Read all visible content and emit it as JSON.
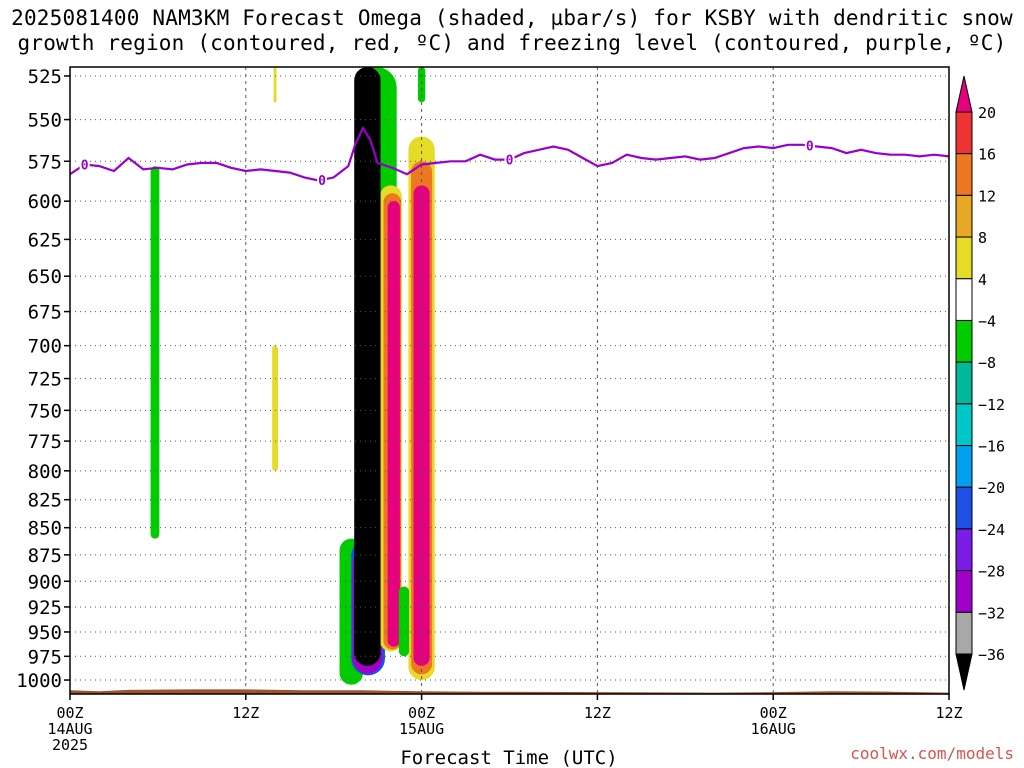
{
  "title_line1": "2025081400 NAM3KM Forecast Omega (shaded, µbar/s) for KSBY with dendritic snow",
  "title_line2": "growth region (contoured, red, ºC) and freezing level (contoured, purple, ºC)",
  "credit": "coolwx.com/models",
  "colors": {
    "freezing": "#9900cc",
    "terrain": "#a0522d",
    "black": "#000000",
    "magenta": "#e6007e",
    "green": "#00cc00",
    "yellow": "#e6dc28"
  },
  "chart_data": {
    "type": "heatmap",
    "xlabel": "Forecast Time (UTC)",
    "x_ticks": [
      {
        "h": 0,
        "l1": "00Z",
        "l2": "14AUG",
        "l3": "2025"
      },
      {
        "h": 12,
        "l1": "12Z",
        "l2": "",
        "l3": ""
      },
      {
        "h": 24,
        "l1": "00Z",
        "l2": "15AUG",
        "l3": ""
      },
      {
        "h": 36,
        "l1": "12Z",
        "l2": "",
        "l3": ""
      },
      {
        "h": 48,
        "l1": "00Z",
        "l2": "16AUG",
        "l3": ""
      },
      {
        "h": 60,
        "l1": "12Z",
        "l2": "",
        "l3": ""
      }
    ],
    "xlim": [
      0,
      60
    ],
    "y_ticks": [
      525,
      550,
      575,
      600,
      625,
      650,
      675,
      700,
      725,
      750,
      775,
      800,
      825,
      850,
      875,
      900,
      925,
      950,
      975,
      1000
    ],
    "ylim": [
      520,
      1015
    ],
    "y_scale": "log",
    "grid": true,
    "colorbar": {
      "labels": [
        "20",
        "16",
        "12",
        "8",
        "4",
        "−4",
        "−8",
        "−12",
        "−16",
        "−20",
        "−24",
        "−28",
        "−32",
        "−36"
      ],
      "colors": [
        "#e6007e",
        "#ee3333",
        "#ee7722",
        "#e6a825",
        "#e6dc28",
        "#ffffff",
        "#00cc00",
        "#00b89a",
        "#00c8c8",
        "#00a0ee",
        "#1e50e6",
        "#7a1ee6",
        "#a000c8",
        "#a8a8a8",
        "#000000"
      ]
    },
    "freezing_level": {
      "hours": [
        0,
        1,
        2,
        3,
        4,
        5,
        6,
        7,
        8,
        9,
        10,
        11,
        12,
        13,
        14,
        15,
        16,
        17,
        18,
        19,
        19.5,
        20,
        20.5,
        21,
        22,
        23,
        24,
        25,
        26,
        27,
        28,
        29,
        30,
        31,
        32,
        33,
        34,
        35,
        36,
        37,
        38,
        39,
        40,
        41,
        42,
        43,
        44,
        45,
        46,
        47,
        48,
        49,
        50,
        51,
        52,
        53,
        54,
        55,
        56,
        57,
        58,
        59,
        60
      ],
      "pressure": [
        583,
        577,
        578,
        581,
        573,
        580,
        579,
        580,
        577,
        576,
        576,
        579,
        581,
        580,
        581,
        582,
        585,
        587,
        585,
        578,
        564,
        555,
        562,
        576,
        579,
        583,
        577,
        576,
        575,
        575,
        571,
        574,
        574,
        570,
        568,
        566,
        568,
        573,
        578,
        576,
        571,
        573,
        574,
        573,
        572,
        574,
        573,
        570,
        567,
        566,
        567,
        565,
        565,
        566,
        567,
        570,
        568,
        570,
        571,
        571,
        572,
        571,
        572
      ],
      "label": "0",
      "label_hours": [
        1,
        17.2,
        30,
        50.5
      ]
    },
    "omega_regions": [
      {
        "value": -36,
        "h_center": 20.3,
        "h_half": 0.9,
        "p_top": 520,
        "p_bottom": 985
      },
      {
        "value": 20,
        "h_center": 24.0,
        "h_half": 0.55,
        "p_top": 590,
        "p_bottom": 985
      },
      {
        "value": 20,
        "h_center": 22.1,
        "h_half": 0.4,
        "p_top": 600,
        "p_bottom": 965
      },
      {
        "value": -8,
        "h_center": 5.8,
        "h_half": 0.3,
        "p_top": 578,
        "p_bottom": 860
      },
      {
        "value": 4,
        "h_center": 14.0,
        "h_half": 0.2,
        "p_top": 700,
        "p_bottom": 800
      }
    ]
  }
}
